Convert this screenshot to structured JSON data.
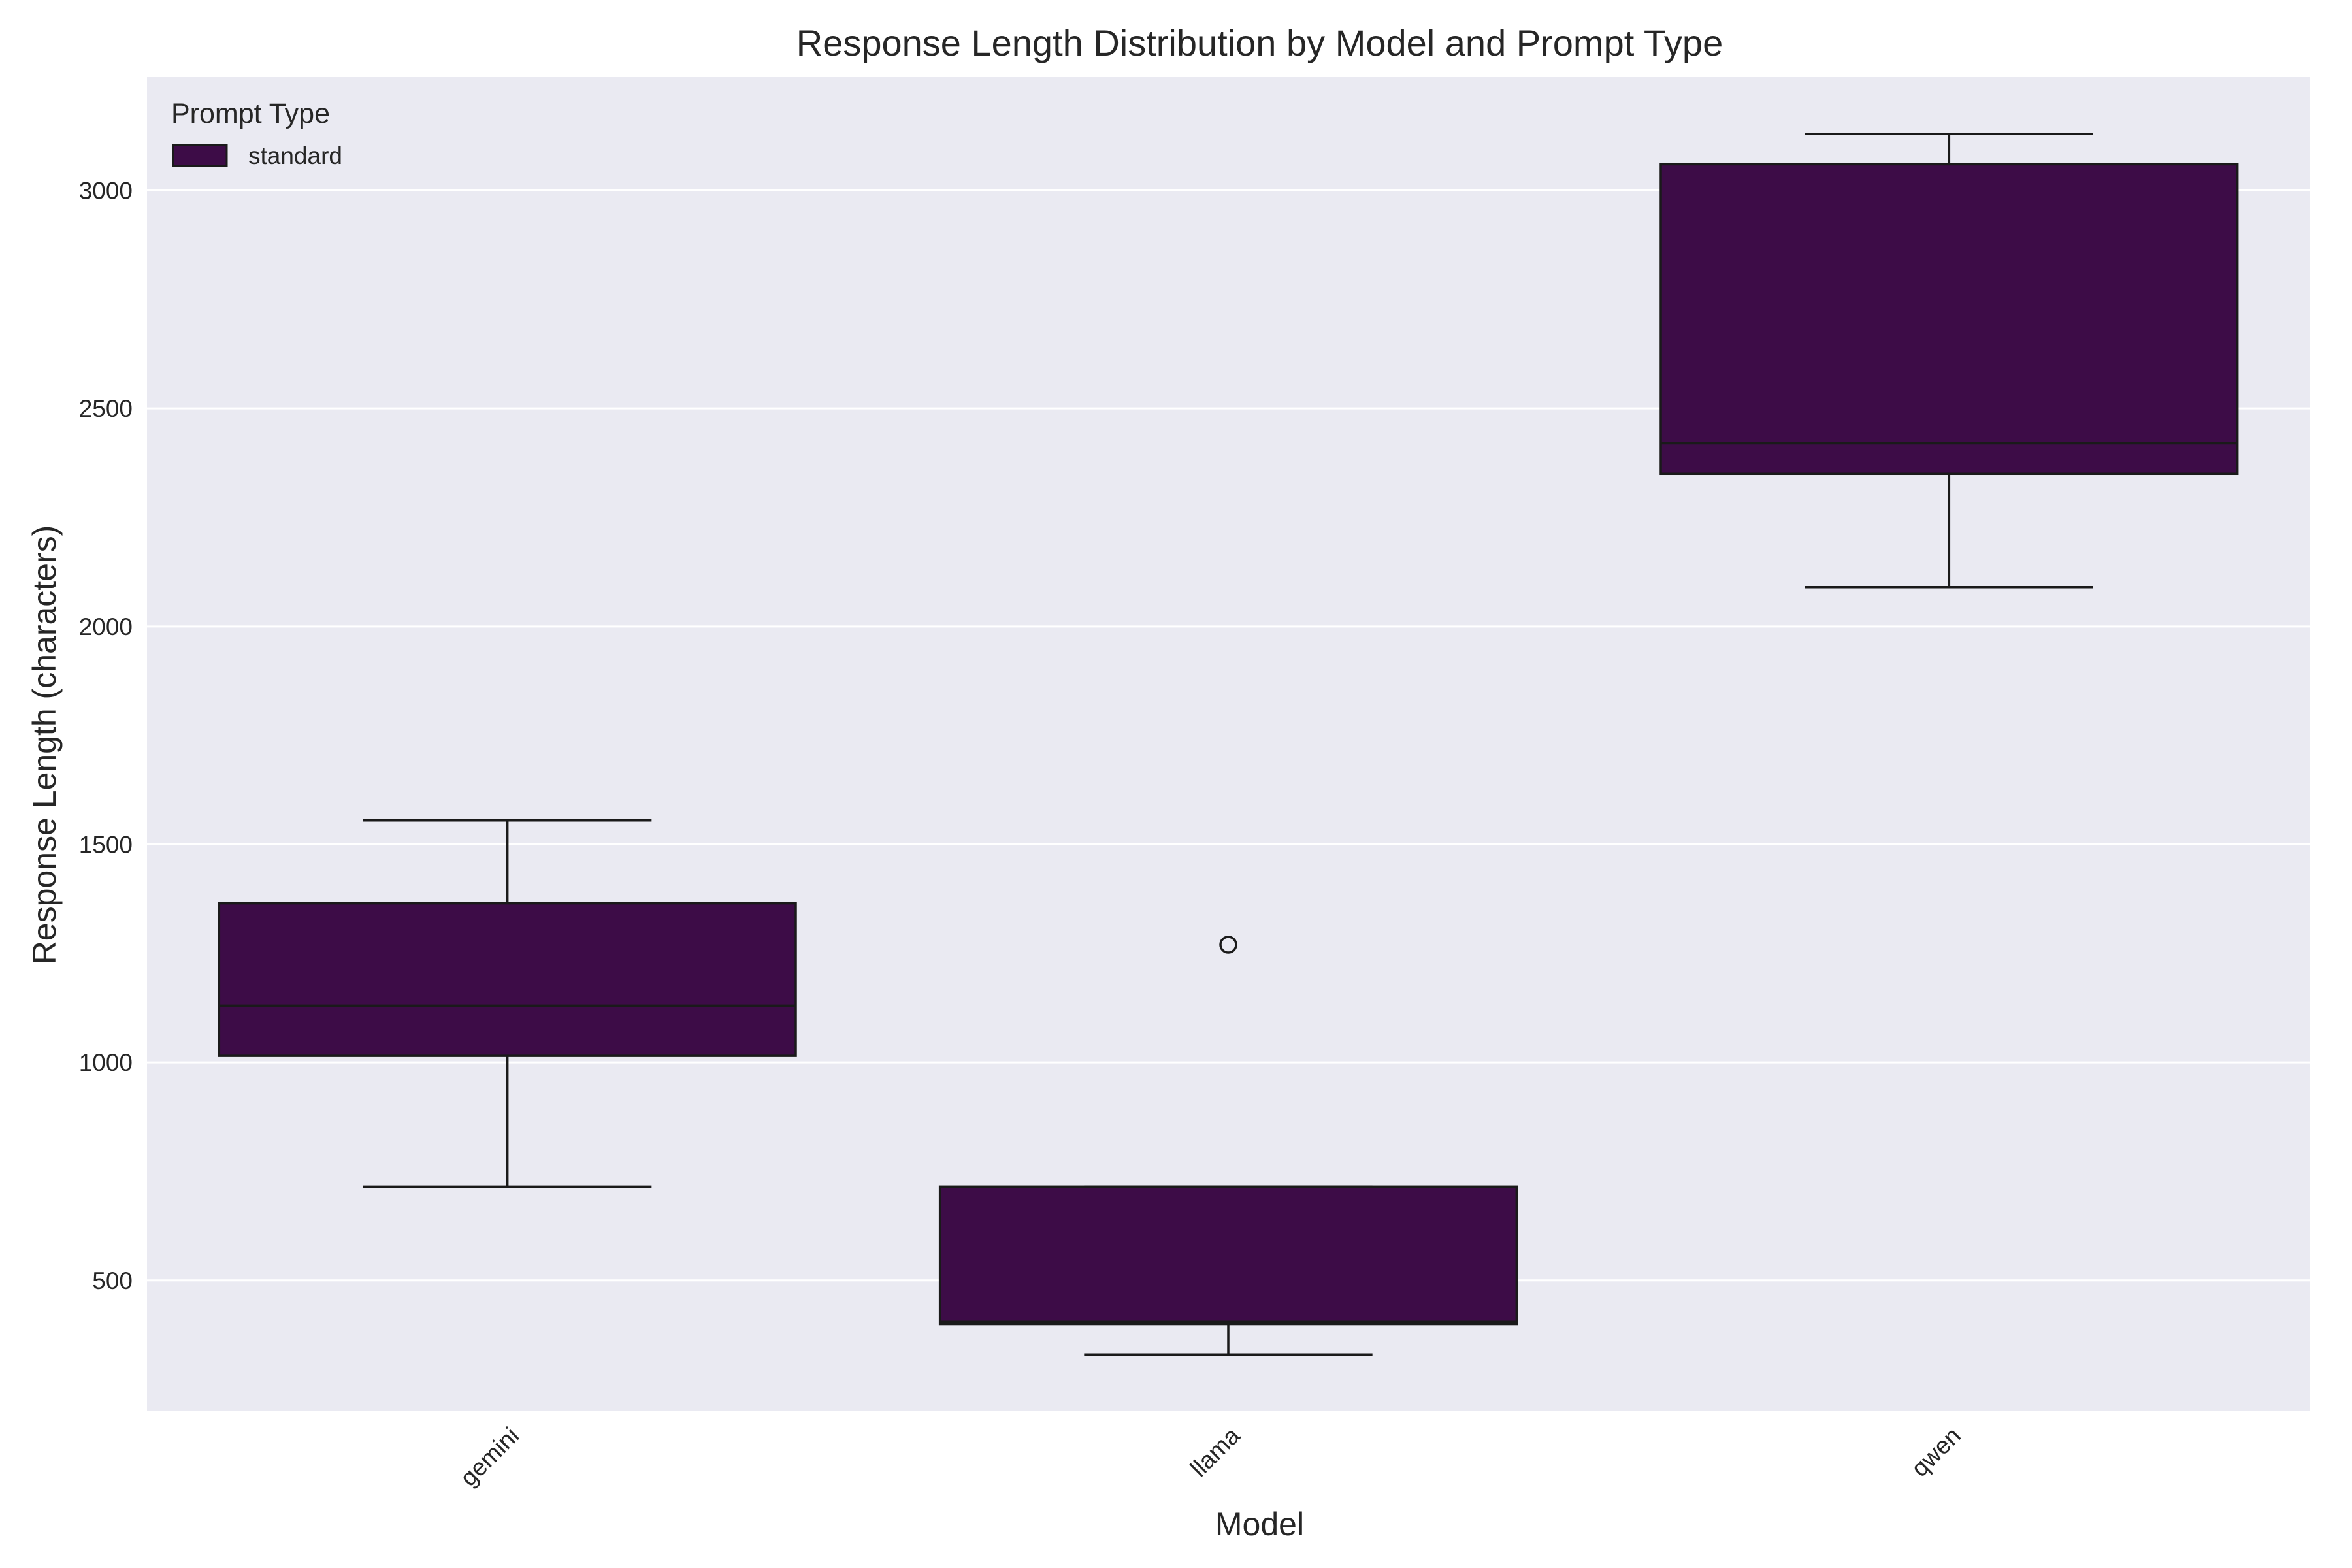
{
  "chart_data": {
    "type": "box",
    "title": "Response Length Distribution by Model and Prompt Type",
    "xlabel": "Model",
    "ylabel": "Response Length (characters)",
    "ylim": [
      200,
      3260
    ],
    "yticks": [
      500,
      1000,
      1500,
      2000,
      2500,
      3000
    ],
    "grid": true,
    "legend": {
      "title": "Prompt Type",
      "placement": "top-left",
      "entries": [
        "standard"
      ]
    },
    "categories": [
      "gemini",
      "llama",
      "qwen"
    ],
    "series": [
      {
        "name": "standard",
        "color": "#3d0c47",
        "boxes": [
          {
            "category": "gemini",
            "whisker_low": 715,
            "q1": 1015,
            "median": 1130,
            "q3": 1365,
            "whisker_high": 1555,
            "outliers": []
          },
          {
            "category": "llama",
            "whisker_low": 330,
            "q1": 400,
            "median": 405,
            "q3": 715,
            "whisker_high": 715,
            "outliers": [
              1270
            ]
          },
          {
            "category": "qwen",
            "whisker_low": 2090,
            "q1": 2350,
            "median": 2420,
            "q3": 3060,
            "whisker_high": 3130,
            "outliers": []
          }
        ]
      }
    ],
    "colors": {
      "plot_background": "#eaeaf2",
      "grid": "#ffffff",
      "box_fill": "#3d0c47",
      "box_edge": "#1a1a1a"
    }
  }
}
